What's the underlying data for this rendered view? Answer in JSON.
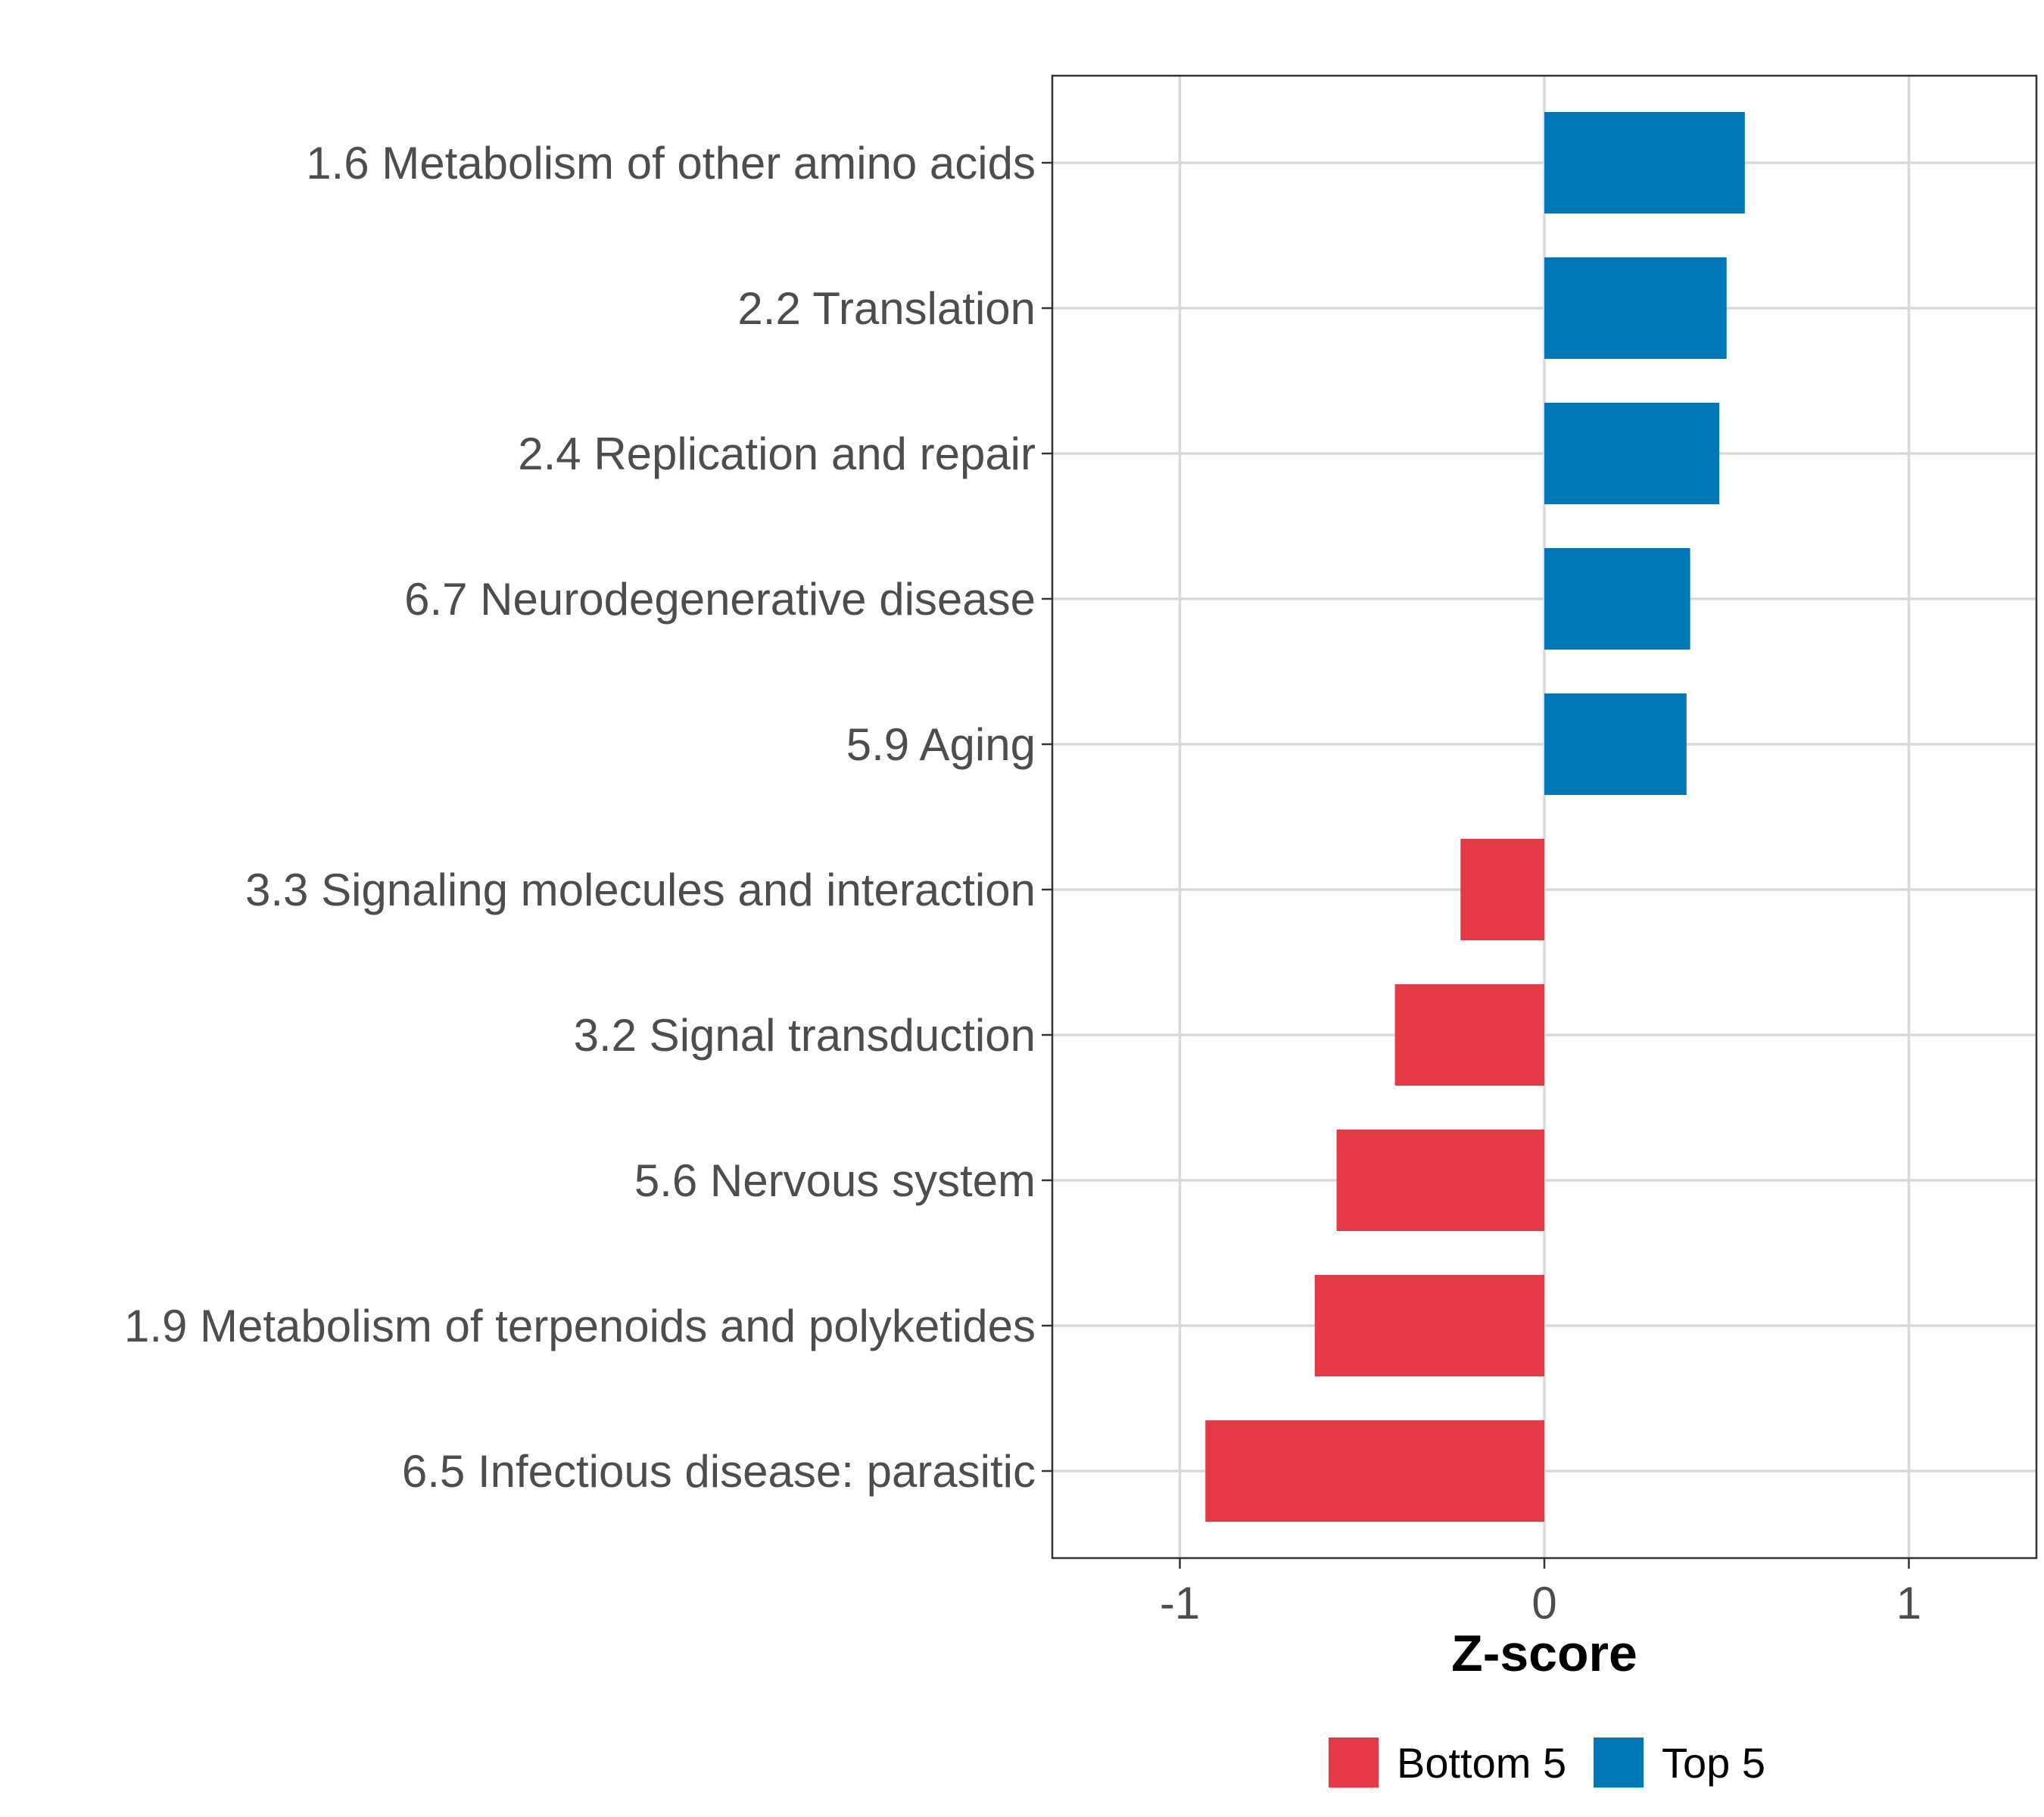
{
  "chart_data": {
    "type": "bar",
    "orientation": "horizontal",
    "xlabel": "Z-score",
    "xlim": [
      -1.35,
      1.35
    ],
    "xticks": [
      -1,
      0,
      1
    ],
    "xtick_labels": [
      "-1",
      "0",
      "1"
    ],
    "grid": true,
    "legend_position": "bottom",
    "legend": [
      {
        "name": "Bottom 5",
        "color": "#e63946"
      },
      {
        "name": "Top 5",
        "color": "#0077b6"
      }
    ],
    "categories": [
      "1.6 Metabolism of other amino acids",
      "2.2 Translation",
      "2.4 Replication and repair",
      "6.7 Neurodegenerative disease",
      "5.9 Aging",
      "3.3 Signaling molecules and interaction",
      "3.2 Signal transduction",
      "5.6 Nervous system",
      "1.9 Metabolism of terpenoids and polyketides",
      "6.5 Infectious disease: parasitic"
    ],
    "values": [
      0.55,
      0.5,
      0.48,
      0.4,
      0.39,
      -0.23,
      -0.41,
      -0.57,
      -0.63,
      -0.93
    ],
    "groups": [
      "Top 5",
      "Top 5",
      "Top 5",
      "Top 5",
      "Top 5",
      "Bottom 5",
      "Bottom 5",
      "Bottom 5",
      "Bottom 5",
      "Bottom 5"
    ]
  }
}
